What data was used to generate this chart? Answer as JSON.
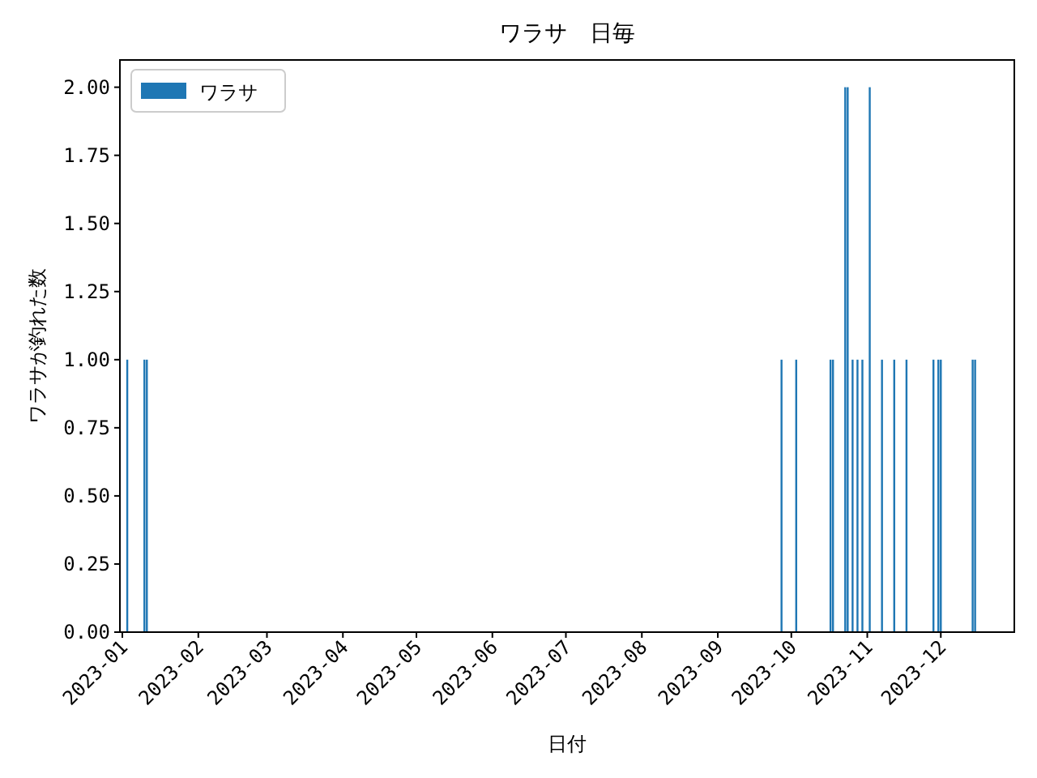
{
  "chart_data": {
    "type": "bar",
    "title": "ワラサ　日毎",
    "xlabel": "日付",
    "ylabel": "ワラサが釣れた数",
    "x": [
      "2023-01-03",
      "2023-01-10",
      "2023-01-11",
      "2023-09-27",
      "2023-10-03",
      "2023-10-17",
      "2023-10-18",
      "2023-10-23",
      "2023-10-24",
      "2023-10-26",
      "2023-10-28",
      "2023-10-30",
      "2023-11-02",
      "2023-11-07",
      "2023-11-12",
      "2023-11-17",
      "2023-11-28",
      "2023-11-30",
      "2023-12-01",
      "2023-12-14",
      "2023-12-15"
    ],
    "series": [
      {
        "name": "ワラサ",
        "color": "#1f77b4",
        "values": [
          1,
          1,
          1,
          1,
          1,
          1,
          1,
          2,
          2,
          1,
          1,
          1,
          2,
          1,
          1,
          1,
          1,
          1,
          1,
          1,
          1
        ]
      }
    ],
    "xlim": [
      "2022-12-31",
      "2023-12-31"
    ],
    "xticks": [
      {
        "value": "2023-01-01",
        "label": "2023-01"
      },
      {
        "value": "2023-02-01",
        "label": "2023-02"
      },
      {
        "value": "2023-03-01",
        "label": "2023-03"
      },
      {
        "value": "2023-04-01",
        "label": "2023-04"
      },
      {
        "value": "2023-05-01",
        "label": "2023-05"
      },
      {
        "value": "2023-06-01",
        "label": "2023-06"
      },
      {
        "value": "2023-07-01",
        "label": "2023-07"
      },
      {
        "value": "2023-08-01",
        "label": "2023-08"
      },
      {
        "value": "2023-09-01",
        "label": "2023-09"
      },
      {
        "value": "2023-10-01",
        "label": "2023-10"
      },
      {
        "value": "2023-11-01",
        "label": "2023-11"
      },
      {
        "value": "2023-12-01",
        "label": "2023-12"
      }
    ],
    "ylim": [
      0,
      2.1
    ],
    "yticks": [
      {
        "value": 0,
        "label": "0.00"
      },
      {
        "value": 0.25,
        "label": "0.25"
      },
      {
        "value": 0.5,
        "label": "0.50"
      },
      {
        "value": 0.75,
        "label": "0.75"
      },
      {
        "value": 1,
        "label": "1.00"
      },
      {
        "value": 1.25,
        "label": "1.25"
      },
      {
        "value": 1.5,
        "label": "1.50"
      },
      {
        "value": 1.75,
        "label": "1.75"
      },
      {
        "value": 2,
        "label": "2.00"
      }
    ],
    "legend": "top left",
    "grid": false
  }
}
